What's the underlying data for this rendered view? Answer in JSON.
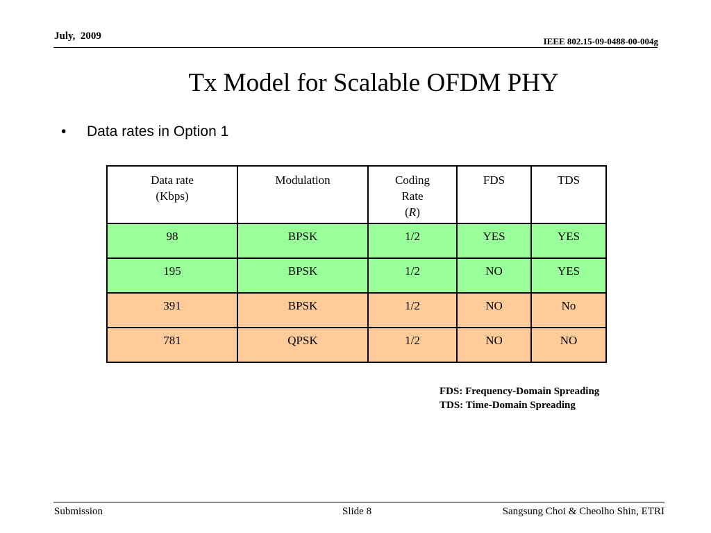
{
  "header": {
    "date": "July,  2009",
    "doc_id": "IEEE 802.15-09-0488-00-004g"
  },
  "slide": {
    "title": "Tx Model for Scalable OFDM PHY",
    "bullet_symbol": "•",
    "bullet_text": "Data rates in Option 1"
  },
  "table": {
    "headers": {
      "data_rate_line1": "Data rate",
      "data_rate_line2": "(Kbps)",
      "modulation": "Modulation",
      "coding_line1": "Coding",
      "coding_line2": "Rate",
      "coding_line3_open": "(",
      "coding_line3_sym": "R",
      "coding_line3_close": ")",
      "fds": "FDS",
      "tds": "TDS"
    },
    "rows": [
      {
        "rate": "98",
        "modulation": "BPSK",
        "coding": "1/2",
        "fds": "YES",
        "tds": "YES",
        "color": "#99ff99"
      },
      {
        "rate": "195",
        "modulation": "BPSK",
        "coding": "1/2",
        "fds": "NO",
        "tds": "YES",
        "color": "#99ff99"
      },
      {
        "rate": "391",
        "modulation": "BPSK",
        "coding": "1/2",
        "fds": "NO",
        "tds": "No",
        "color": "#ffcc99"
      },
      {
        "rate": "781",
        "modulation": "QPSK",
        "coding": "1/2",
        "fds": "NO",
        "tds": "NO",
        "color": "#ffcc99"
      }
    ]
  },
  "legend": {
    "fds": "FDS: Frequency-Domain Spreading",
    "tds": "TDS: Time-Domain Spreading"
  },
  "footer": {
    "left": "Submission",
    "center": "Slide 8",
    "right": "Sangsung Choi & Cheolho Shin, ETRI"
  }
}
